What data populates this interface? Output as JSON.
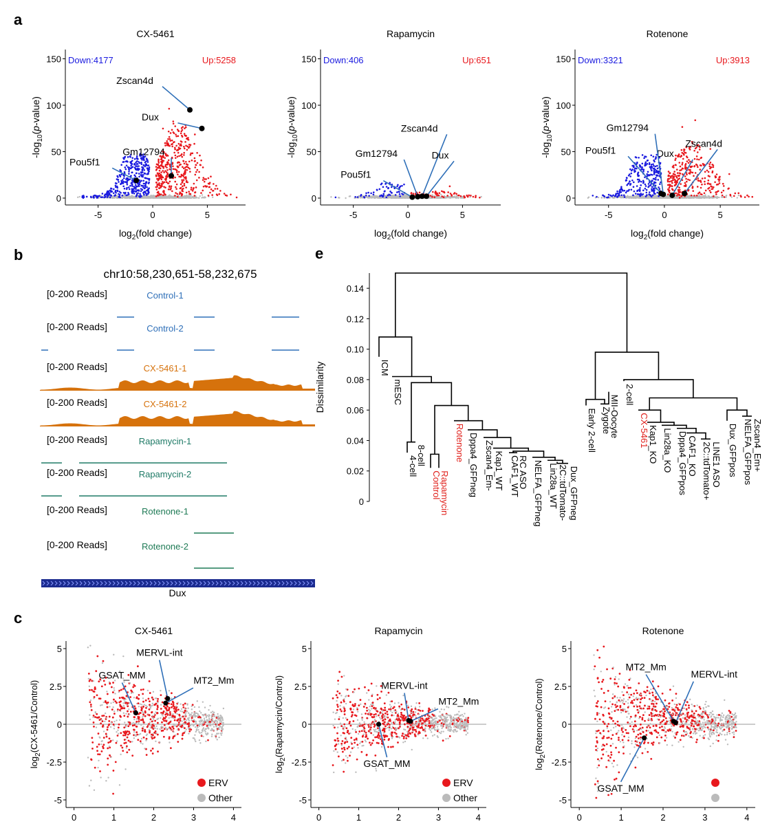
{
  "panels": {
    "a": "a",
    "b": "b",
    "c": "c",
    "e": "e"
  },
  "panel_a": {
    "x_label": "log",
    "x_label_sub": "2",
    "x_label_tail": "(fold change)",
    "y_label_pre": "-log",
    "y_label_sub": "10",
    "y_label_mid": "(",
    "y_label_italic": "p",
    "y_label_tail": "-value)",
    "plots": [
      {
        "title": "CX-5461",
        "down": "Down:4177",
        "up": "Up:5258",
        "x_ticks": [
          "-5",
          "0",
          "5"
        ],
        "y_ticks": [
          "0",
          "50",
          "100",
          "150"
        ],
        "genes": [
          {
            "label": "Zscan4d",
            "x": 3.4,
            "y": 95
          },
          {
            "label": "Dux",
            "x": 4.5,
            "y": 75
          },
          {
            "label": "Pou5f1",
            "x": -1.5,
            "y": 19
          },
          {
            "label": "Gm12794",
            "x": 1.7,
            "y": 24
          }
        ]
      },
      {
        "title": "Rapamycin",
        "down": "Down:406",
        "up": "Up:651",
        "x_ticks": [
          "-5",
          "0",
          "5"
        ],
        "y_ticks": [
          "0",
          "50",
          "100",
          "150"
        ],
        "genes": [
          {
            "label": "Zscan4d",
            "x": 1.3,
            "y": 2
          },
          {
            "label": "Dux",
            "x": 1.7,
            "y": 2
          },
          {
            "label": "Pou5f1",
            "x": 0.4,
            "y": 1
          },
          {
            "label": "Gm12794",
            "x": 0.9,
            "y": 1.5
          }
        ]
      },
      {
        "title": "Rotenone",
        "down": "Down:3321",
        "up": "Up:3913",
        "x_ticks": [
          "-5",
          "0",
          "5"
        ],
        "y_ticks": [
          "0",
          "50",
          "100",
          "150"
        ],
        "genes": [
          {
            "label": "Zscan4d",
            "x": 1.8,
            "y": 5
          },
          {
            "label": "Dux",
            "x": 0.7,
            "y": 3
          },
          {
            "label": "Pou5f1",
            "x": -0.3,
            "y": 5
          },
          {
            "label": "Gm12794",
            "x": -0.1,
            "y": 4
          }
        ]
      }
    ]
  },
  "panel_b": {
    "locus": "chr10:58,230,651-58,232,675",
    "gene": "Dux",
    "tracks": [
      {
        "range": "[0-200 Reads]",
        "name": "Control-1",
        "color": "#2e6fb8"
      },
      {
        "range": "[0-200 Reads]",
        "name": "Control-2",
        "color": "#2e6fb8"
      },
      {
        "range": "[0-200 Reads]",
        "name": "CX-5461-1",
        "color": "#d6720c"
      },
      {
        "range": "[0-200 Reads]",
        "name": "CX-5461-2",
        "color": "#d6720c"
      },
      {
        "range": "[0-200 Reads]",
        "name": "Rapamycin-1",
        "color": "#1e7a66"
      },
      {
        "range": "[0-200 Reads]",
        "name": "Rapamycin-2",
        "color": "#1e7a66"
      },
      {
        "range": "[0-200 Reads]",
        "name": "Rotenone-1",
        "color": "#1e7a55"
      },
      {
        "range": "[0-200 Reads]",
        "name": "Rotenone-2",
        "color": "#1e7a55"
      }
    ]
  },
  "panel_c": {
    "legend_erv": "ERV",
    "legend_other": "Other",
    "x_ticks": [
      "0",
      "1",
      "2",
      "3",
      "4"
    ],
    "plots": [
      {
        "title": "CX-5461",
        "y_label_pre": "log",
        "y_label_sub": "2",
        "y_label_tail": "(CX-5461/Control)",
        "y_ticks": [
          "-5",
          "-2.5",
          "0",
          "2.5",
          "5"
        ],
        "genes": [
          {
            "label": "GSAT_MM",
            "x": 1.55,
            "y": 0.75
          },
          {
            "label": "MERVL-int",
            "x": 2.35,
            "y": 1.7
          },
          {
            "label": "MT2_Mm",
            "x": 2.3,
            "y": 1.4
          }
        ]
      },
      {
        "title": "Rapamycin",
        "y_label_pre": "log",
        "y_label_sub": "2",
        "y_label_tail": "(Rapamycin/Control)",
        "y_ticks": [
          "-5",
          "-2.5",
          "0",
          "2.5",
          "5"
        ],
        "genes": [
          {
            "label": "MERVL-int",
            "x": 2.25,
            "y": 0.25
          },
          {
            "label": "MT2_Mm",
            "x": 2.3,
            "y": 0.2
          },
          {
            "label": "GSAT_MM",
            "x": 1.5,
            "y": 0.0
          }
        ]
      },
      {
        "title": "Rotenone",
        "y_label_pre": "log",
        "y_label_sub": "2",
        "y_label_tail": "(Rotenone/Control)",
        "y_ticks": [
          "-5",
          "-2.5",
          "0",
          "2.5",
          "5"
        ],
        "genes": [
          {
            "label": "MT2_Mm",
            "x": 2.25,
            "y": 0.2
          },
          {
            "label": "MERVL-int",
            "x": 2.3,
            "y": 0.1
          },
          {
            "label": "GSAT_MM",
            "x": 1.55,
            "y": -0.9
          }
        ]
      }
    ]
  },
  "panel_e": {
    "y_label": "Dissimilarity",
    "y_ticks": [
      "0",
      "0.02",
      "0.04",
      "0.06",
      "0.08",
      "0.10",
      "0.12",
      "0.14"
    ],
    "leaves": [
      {
        "label": "ICM",
        "color": "#000"
      },
      {
        "label": "mESC",
        "color": "#000"
      },
      {
        "label": "4-cell",
        "color": "#000"
      },
      {
        "label": "8-cell",
        "color": "#000"
      },
      {
        "label": "Control",
        "color": "#e0201b"
      },
      {
        "label": "Rapamycin",
        "color": "#e0201b"
      },
      {
        "label": "Rotenone",
        "color": "#e0201b"
      },
      {
        "label": "Dppa4_GFPneg",
        "color": "#000"
      },
      {
        "label": "Zscan4_Em-",
        "color": "#000"
      },
      {
        "label": "Kap1_WT",
        "color": "#000"
      },
      {
        "label": "CAF1_WT",
        "color": "#000"
      },
      {
        "label": "RC ASO",
        "color": "#000"
      },
      {
        "label": "NELFA_GFPneg",
        "color": "#000"
      },
      {
        "label": "Lin28a_WT",
        "color": "#000"
      },
      {
        "label": "2C::tdTomato-",
        "color": "#000"
      },
      {
        "label": "Dux_GFPneg",
        "color": "#000"
      },
      {
        "label": "Early 2-cell",
        "color": "#000"
      },
      {
        "label": "Zygote",
        "color": "#000"
      },
      {
        "label": "MII-Oocyte",
        "color": "#000"
      },
      {
        "label": "2-cell",
        "color": "#000"
      },
      {
        "label": "CX-5461",
        "color": "#e0201b"
      },
      {
        "label": "Kap1_KO",
        "color": "#000"
      },
      {
        "label": "Lin28a_KO",
        "color": "#000"
      },
      {
        "label": "Dppa4_GFPpos",
        "color": "#000"
      },
      {
        "label": "CAF1_KO",
        "color": "#000"
      },
      {
        "label": "2C::tdTomato+",
        "color": "#000"
      },
      {
        "label": "LINE1 ASO",
        "color": "#000"
      },
      {
        "label": "Dux_GFPpos",
        "color": "#000"
      },
      {
        "label": "NELFA_GFPpos",
        "color": "#000"
      },
      {
        "label": "Zscan4_Em+",
        "color": "#000"
      }
    ]
  },
  "chart_data": [
    {
      "type": "scatter",
      "title": "CX-5461",
      "xlabel": "log2(fold change)",
      "ylabel": "-log10(p-value)",
      "xlim": [
        -8,
        8.5
      ],
      "ylim": [
        0,
        160
      ],
      "annotations": [
        "Down:4177",
        "Up:5258"
      ],
      "series": [
        {
          "name": "",
          "highlighted": [
            {
              "label": "Zscan4d",
              "x": 3.4,
              "y": 95
            },
            {
              "label": "Dux",
              "x": 4.5,
              "y": 75
            },
            {
              "label": "Pou5f1",
              "x": -1.5,
              "y": 19
            },
            {
              "label": "Gm12794",
              "x": 1.7,
              "y": 24
            }
          ]
        }
      ],
      "colors": {
        "down": "#1a1adf",
        "up": "#e8181d",
        "ns": "#bbbbbb"
      }
    },
    {
      "type": "scatter",
      "title": "Rapamycin",
      "xlabel": "log2(fold change)",
      "ylabel": "-log10(p-value)",
      "xlim": [
        -8,
        8.5
      ],
      "ylim": [
        0,
        160
      ],
      "annotations": [
        "Down:406",
        "Up:651"
      ],
      "series": [
        {
          "name": "",
          "highlighted": [
            {
              "label": "Zscan4d",
              "x": 1.3,
              "y": 2
            },
            {
              "label": "Dux",
              "x": 1.7,
              "y": 2
            },
            {
              "label": "Pou5f1",
              "x": 0.4,
              "y": 1
            },
            {
              "label": "Gm12794",
              "x": 0.9,
              "y": 1.5
            }
          ]
        }
      ]
    },
    {
      "type": "scatter",
      "title": "Rotenone",
      "xlabel": "log2(fold change)",
      "ylabel": "-log10(p-value)",
      "xlim": [
        -8,
        8.5
      ],
      "ylim": [
        0,
        160
      ],
      "annotations": [
        "Down:3321",
        "Up:3913"
      ],
      "series": [
        {
          "name": "",
          "highlighted": [
            {
              "label": "Zscan4d",
              "x": 1.8,
              "y": 5
            },
            {
              "label": "Dux",
              "x": 0.7,
              "y": 3
            },
            {
              "label": "Pou5f1",
              "x": -0.3,
              "y": 5
            },
            {
              "label": "Gm12794",
              "x": -0.1,
              "y": 4
            }
          ]
        }
      ]
    },
    {
      "type": "scatter",
      "title": "CX-5461",
      "ylabel": "log2(CX-5461/Control)",
      "xlim": [
        -0.2,
        4.2
      ],
      "ylim": [
        -5.5,
        5.5
      ],
      "series": [
        {
          "name": "ERV"
        },
        {
          "name": "Other"
        }
      ]
    },
    {
      "type": "scatter",
      "title": "Rapamycin",
      "ylabel": "log2(Rapamycin/Control)",
      "xlim": [
        -0.2,
        4.2
      ],
      "ylim": [
        -5.5,
        5.5
      ],
      "series": [
        {
          "name": "ERV"
        },
        {
          "name": "Other"
        }
      ]
    },
    {
      "type": "scatter",
      "title": "Rotenone",
      "ylabel": "log2(Rotenone/Control)",
      "xlim": [
        -0.2,
        4.2
      ],
      "ylim": [
        -5.5,
        5.5
      ],
      "series": [
        {
          "name": "ERV"
        },
        {
          "name": "Other"
        }
      ]
    },
    {
      "type": "dendrogram",
      "ylabel": "Dissimilarity",
      "ylim": [
        0,
        0.15
      ]
    }
  ]
}
